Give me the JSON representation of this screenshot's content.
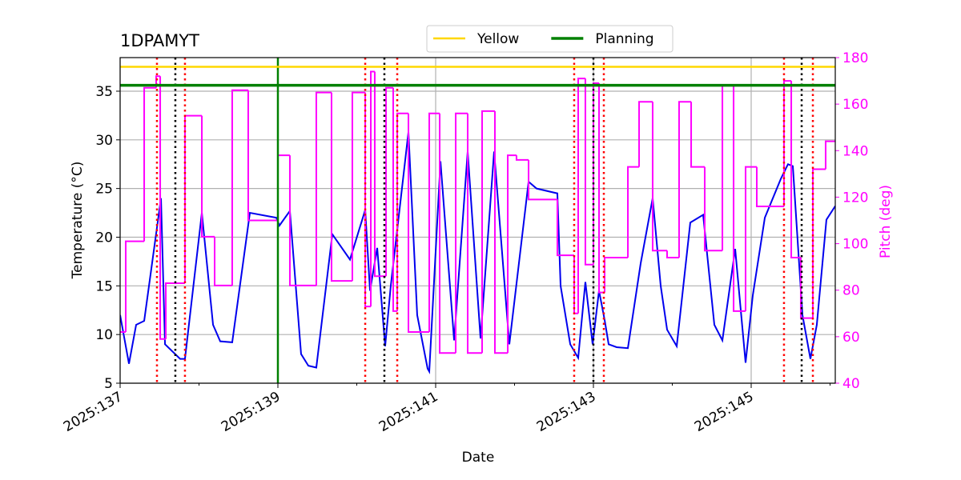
{
  "chart_data": {
    "type": "line",
    "title": "1DPAMYT",
    "xlabel": "Date",
    "ylabel": "Temperature (°C)",
    "y2label": "Pitch (deg)",
    "y2color": "#ff00ff",
    "xlim": [
      137,
      146.066
    ],
    "xticks": [
      {
        "value": 137,
        "label": "2025:137"
      },
      {
        "value": 139,
        "label": "2025:139"
      },
      {
        "value": 141,
        "label": "2025:141"
      },
      {
        "value": 143,
        "label": "2025:143"
      },
      {
        "value": 145,
        "label": "2025:145"
      }
    ],
    "xminorticks": [
      138,
      140,
      142,
      144,
      146
    ],
    "ylim": [
      5,
      38.45
    ],
    "yticks": [
      5,
      10,
      15,
      20,
      25,
      30,
      35
    ],
    "y2lim": [
      40,
      180
    ],
    "y2ticks": [
      40,
      60,
      80,
      100,
      120,
      140,
      160,
      180
    ],
    "grid": true,
    "legend": "upper center",
    "hlines": [
      {
        "name": "Yellow",
        "value": 37.5,
        "color": "#ffd700"
      },
      {
        "name": "Planning",
        "value": 35.6,
        "color": "#008000"
      }
    ],
    "vlines": [
      {
        "value": 139,
        "color": "#008000",
        "style": "solid"
      },
      {
        "value": 137.467,
        "color": "#ff0000",
        "style": "dotted"
      },
      {
        "value": 137.822,
        "color": "#ff0000",
        "style": "dotted"
      },
      {
        "value": 140.107,
        "color": "#ff0000",
        "style": "dotted"
      },
      {
        "value": 140.513,
        "color": "#ff0000",
        "style": "dotted"
      },
      {
        "value": 142.756,
        "color": "#ff0000",
        "style": "dotted"
      },
      {
        "value": 143.132,
        "color": "#ff0000",
        "style": "dotted"
      },
      {
        "value": 145.416,
        "color": "#ff0000",
        "style": "dotted"
      },
      {
        "value": 145.782,
        "color": "#ff0000",
        "style": "dotted"
      },
      {
        "value": 137.7,
        "color": "#000000",
        "style": "dotted"
      },
      {
        "value": 140.35,
        "color": "#000000",
        "style": "dotted"
      },
      {
        "value": 143.0,
        "color": "#000000",
        "style": "dotted"
      },
      {
        "value": 145.64,
        "color": "#000000",
        "style": "dotted"
      }
    ],
    "series": [
      {
        "color": "#0000ee",
        "axis": "y",
        "x": [
          137.0,
          137.112,
          137.203,
          137.305,
          137.518,
          137.569,
          137.761,
          137.822,
          138.036,
          138.178,
          138.269,
          138.421,
          138.645,
          138.98,
          139.02,
          139.152,
          139.294,
          139.386,
          139.487,
          139.69,
          139.914,
          140.107,
          140.168,
          140.259,
          140.36,
          140.431,
          140.655,
          140.766,
          140.898,
          140.919,
          141.061,
          141.234,
          141.406,
          141.569,
          141.741,
          141.934,
          142.178,
          142.279,
          142.543,
          142.584,
          142.706,
          142.807,
          142.898,
          142.99,
          143.071,
          143.142,
          143.193,
          143.294,
          143.437,
          143.599,
          143.751,
          143.853,
          143.934,
          144.056,
          144.228,
          144.391,
          144.533,
          144.635,
          144.797,
          144.929,
          145.02,
          145.173,
          145.376,
          145.467,
          145.528,
          145.65,
          145.751,
          145.832,
          145.954,
          146.066
        ],
        "values": [
          12,
          7,
          11,
          11.4,
          24,
          9,
          7.5,
          7.5,
          22.5,
          11,
          9.3,
          9.2,
          22.5,
          22,
          21.2,
          22.7,
          8,
          6.8,
          6.6,
          20.3,
          17.7,
          22.8,
          14.5,
          18.9,
          8.8,
          15,
          30.8,
          12,
          6.5,
          6.2,
          27.8,
          9.4,
          28.8,
          9.6,
          28.8,
          9,
          25.7,
          25,
          24.5,
          15,
          9,
          7.6,
          15.4,
          9,
          14.5,
          11.5,
          9,
          8.7,
          8.6,
          17.3,
          24,
          15,
          10.5,
          8.8,
          21.5,
          22.3,
          11,
          9.4,
          18.8,
          7.1,
          14,
          22,
          26,
          27.5,
          27.3,
          12,
          7.5,
          11,
          21.8,
          23.2
        ]
      },
      {
        "color": "#ff00ff",
        "axis": "y2",
        "step": "post",
        "x": [
          137.0,
          137.071,
          137.305,
          137.457,
          137.508,
          137.579,
          137.822,
          138.036,
          138.198,
          138.421,
          138.624,
          139.0,
          139.152,
          139.487,
          139.68,
          139.944,
          140.107,
          140.178,
          140.228,
          140.371,
          140.462,
          140.513,
          140.655,
          140.919,
          141.051,
          141.254,
          141.406,
          141.589,
          141.751,
          141.914,
          142.025,
          142.178,
          142.543,
          142.756,
          142.807,
          142.898,
          143.0,
          143.071,
          143.142,
          143.437,
          143.579,
          143.751,
          143.934,
          144.086,
          144.239,
          144.411,
          144.635,
          144.777,
          144.929,
          145.071,
          145.416,
          145.508,
          145.629,
          145.782,
          145.944,
          146.066
        ],
        "values": [
          62,
          101,
          167,
          172,
          59,
          83,
          155,
          103,
          82,
          166,
          110,
          138,
          82,
          165,
          84,
          165,
          73,
          174,
          86,
          167,
          71,
          156,
          62,
          156,
          53,
          156,
          53,
          157,
          53,
          138,
          136,
          119,
          95,
          70,
          171,
          91,
          169,
          79,
          94,
          133,
          161,
          97,
          94,
          161,
          133,
          97,
          168,
          71,
          133,
          116,
          170,
          94,
          68,
          132,
          144,
          144
        ]
      }
    ]
  }
}
